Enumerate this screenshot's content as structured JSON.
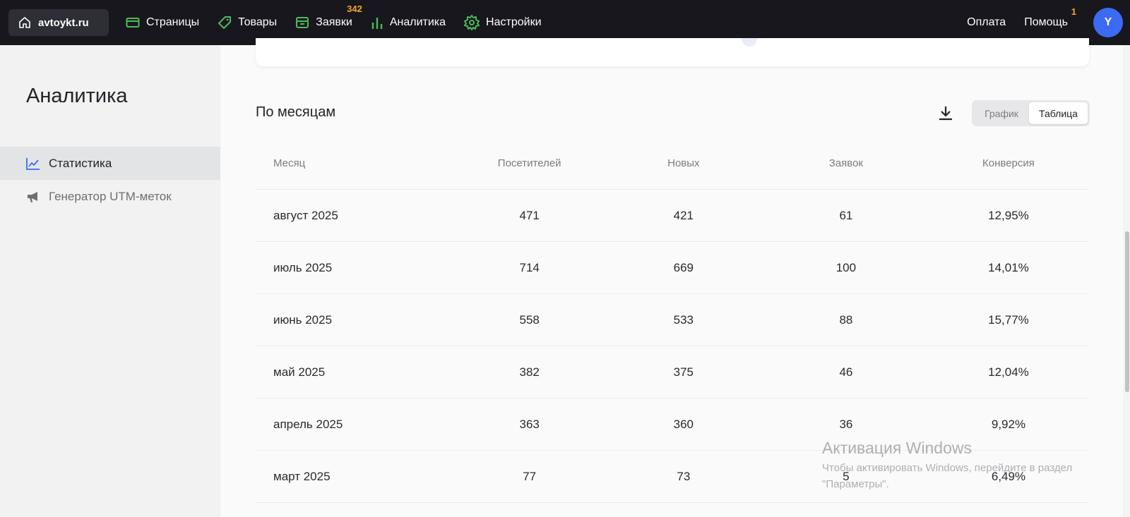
{
  "topbar": {
    "site": "avtoykt.ru",
    "nav": [
      {
        "label": "Страницы",
        "icon": "page-icon"
      },
      {
        "label": "Товары",
        "icon": "tag-icon"
      },
      {
        "label": "Заявки",
        "icon": "inbox-icon",
        "badge": "342"
      },
      {
        "label": "Аналитика",
        "icon": "bar-chart-icon"
      },
      {
        "label": "Настройки",
        "icon": "gear-icon"
      }
    ],
    "payment": "Оплата",
    "help": "Помощь",
    "help_badge": "1",
    "avatar": "Y"
  },
  "sidebar": {
    "title": "Аналитика",
    "items": [
      {
        "label": "Статистика",
        "icon": "line-chart-icon",
        "active": true
      },
      {
        "label": "Генератор UTM-меток",
        "icon": "megaphone-icon",
        "active": false
      }
    ]
  },
  "main": {
    "section_title": "По месяцам",
    "toggle": {
      "graph": "График",
      "table": "Таблица",
      "selected": "Таблица"
    },
    "columns": [
      "Месяц",
      "Посетителей",
      "Новых",
      "Заявок",
      "Конверсия"
    ],
    "rows": [
      [
        "август 2025",
        "471",
        "421",
        "61",
        "12,95%"
      ],
      [
        "июль 2025",
        "714",
        "669",
        "100",
        "14,01%"
      ],
      [
        "июнь 2025",
        "558",
        "533",
        "88",
        "15,77%"
      ],
      [
        "май 2025",
        "382",
        "375",
        "46",
        "12,04%"
      ],
      [
        "апрель 2025",
        "363",
        "360",
        "36",
        "9,92%"
      ],
      [
        "март 2025",
        "77",
        "73",
        "5",
        "6,49%"
      ]
    ]
  },
  "watermark": {
    "title": "Активация Windows",
    "text": "Чтобы активировать Windows, перейдите в раздел \"Параметры\"."
  },
  "colors": {
    "topbar": "#17171d",
    "accent_green": "#4cbb5a",
    "badge": "#f5a623",
    "avatar": "#3d6af2",
    "active_icon": "#3d6af2"
  }
}
